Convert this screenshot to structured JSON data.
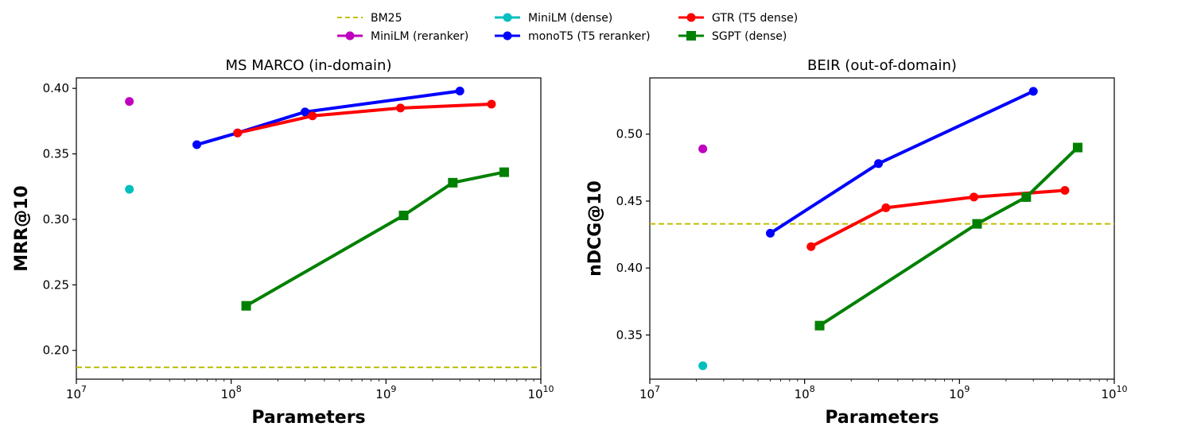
{
  "legend": [
    {
      "name": "BM25",
      "color": "#bfbf00",
      "marker": "none",
      "dashed": true
    },
    {
      "name": "MiniLM (reranker)",
      "color": "#bf00bf",
      "marker": "circle",
      "dashed": false
    },
    {
      "name": "MiniLM (dense)",
      "color": "#00bfbf",
      "marker": "circle",
      "dashed": false
    },
    {
      "name": "monoT5 (T5 reranker)",
      "color": "#0000ff",
      "marker": "circle",
      "dashed": false
    },
    {
      "name": "GTR (T5 dense)",
      "color": "#ff0000",
      "marker": "circle",
      "dashed": false
    },
    {
      "name": "SGPT (dense)",
      "color": "#008000",
      "marker": "square",
      "dashed": false
    }
  ],
  "chart_data": [
    {
      "type": "line",
      "title": "MS MARCO (in-domain)",
      "xlabel": "Parameters",
      "ylabel": "MRR@10",
      "xscale": "log",
      "xlim": [
        10000000,
        10000000000
      ],
      "ylim": [
        0.178,
        0.408
      ],
      "xticks": [
        "10^7",
        "10^8",
        "10^9",
        "10^10"
      ],
      "yticks": [
        "0.20",
        "0.25",
        "0.30",
        "0.35",
        "0.40"
      ],
      "ytick_values": [
        0.2,
        0.25,
        0.3,
        0.35,
        0.4
      ],
      "hlines": [
        {
          "name": "BM25",
          "y": 0.187
        }
      ],
      "series": [
        {
          "name": "MiniLM (reranker)",
          "x": [
            22000000
          ],
          "y": [
            0.39
          ]
        },
        {
          "name": "MiniLM (dense)",
          "x": [
            22000000
          ],
          "y": [
            0.323
          ]
        },
        {
          "name": "monoT5 (T5 reranker)",
          "x": [
            60000000,
            110000000,
            300000000,
            3000000000
          ],
          "y": [
            0.357,
            0.366,
            0.382,
            0.398
          ]
        },
        {
          "name": "GTR (T5 dense)",
          "x": [
            110000000,
            335000000,
            1240000000,
            4800000000
          ],
          "y": [
            0.366,
            0.379,
            0.385,
            0.388
          ]
        },
        {
          "name": "SGPT (dense)",
          "x": [
            125000000,
            1300000000,
            2700000000,
            5800000000
          ],
          "y": [
            0.234,
            0.303,
            0.328,
            0.336
          ]
        }
      ]
    },
    {
      "type": "line",
      "title": "BEIR (out-of-domain)",
      "xlabel": "Parameters",
      "ylabel": "nDCG@10",
      "xscale": "log",
      "xlim": [
        10000000,
        10000000000
      ],
      "ylim": [
        0.317,
        0.542
      ],
      "xticks": [
        "10^7",
        "10^8",
        "10^9",
        "10^10"
      ],
      "yticks": [
        "0.35",
        "0.40",
        "0.45",
        "0.50"
      ],
      "ytick_values": [
        0.35,
        0.4,
        0.45,
        0.5
      ],
      "hlines": [
        {
          "name": "BM25",
          "y": 0.433
        }
      ],
      "series": [
        {
          "name": "MiniLM (reranker)",
          "x": [
            22000000
          ],
          "y": [
            0.489
          ]
        },
        {
          "name": "MiniLM (dense)",
          "x": [
            22000000
          ],
          "y": [
            0.327
          ]
        },
        {
          "name": "monoT5 (T5 reranker)",
          "x": [
            60000000,
            300000000,
            3000000000
          ],
          "y": [
            0.426,
            0.478,
            0.532
          ]
        },
        {
          "name": "GTR (T5 dense)",
          "x": [
            110000000,
            335000000,
            1240000000,
            4800000000
          ],
          "y": [
            0.416,
            0.445,
            0.453,
            0.458
          ]
        },
        {
          "name": "SGPT (dense)",
          "x": [
            125000000,
            1300000000,
            2700000000,
            5800000000
          ],
          "y": [
            0.357,
            0.433,
            0.453,
            0.49
          ]
        }
      ]
    }
  ]
}
